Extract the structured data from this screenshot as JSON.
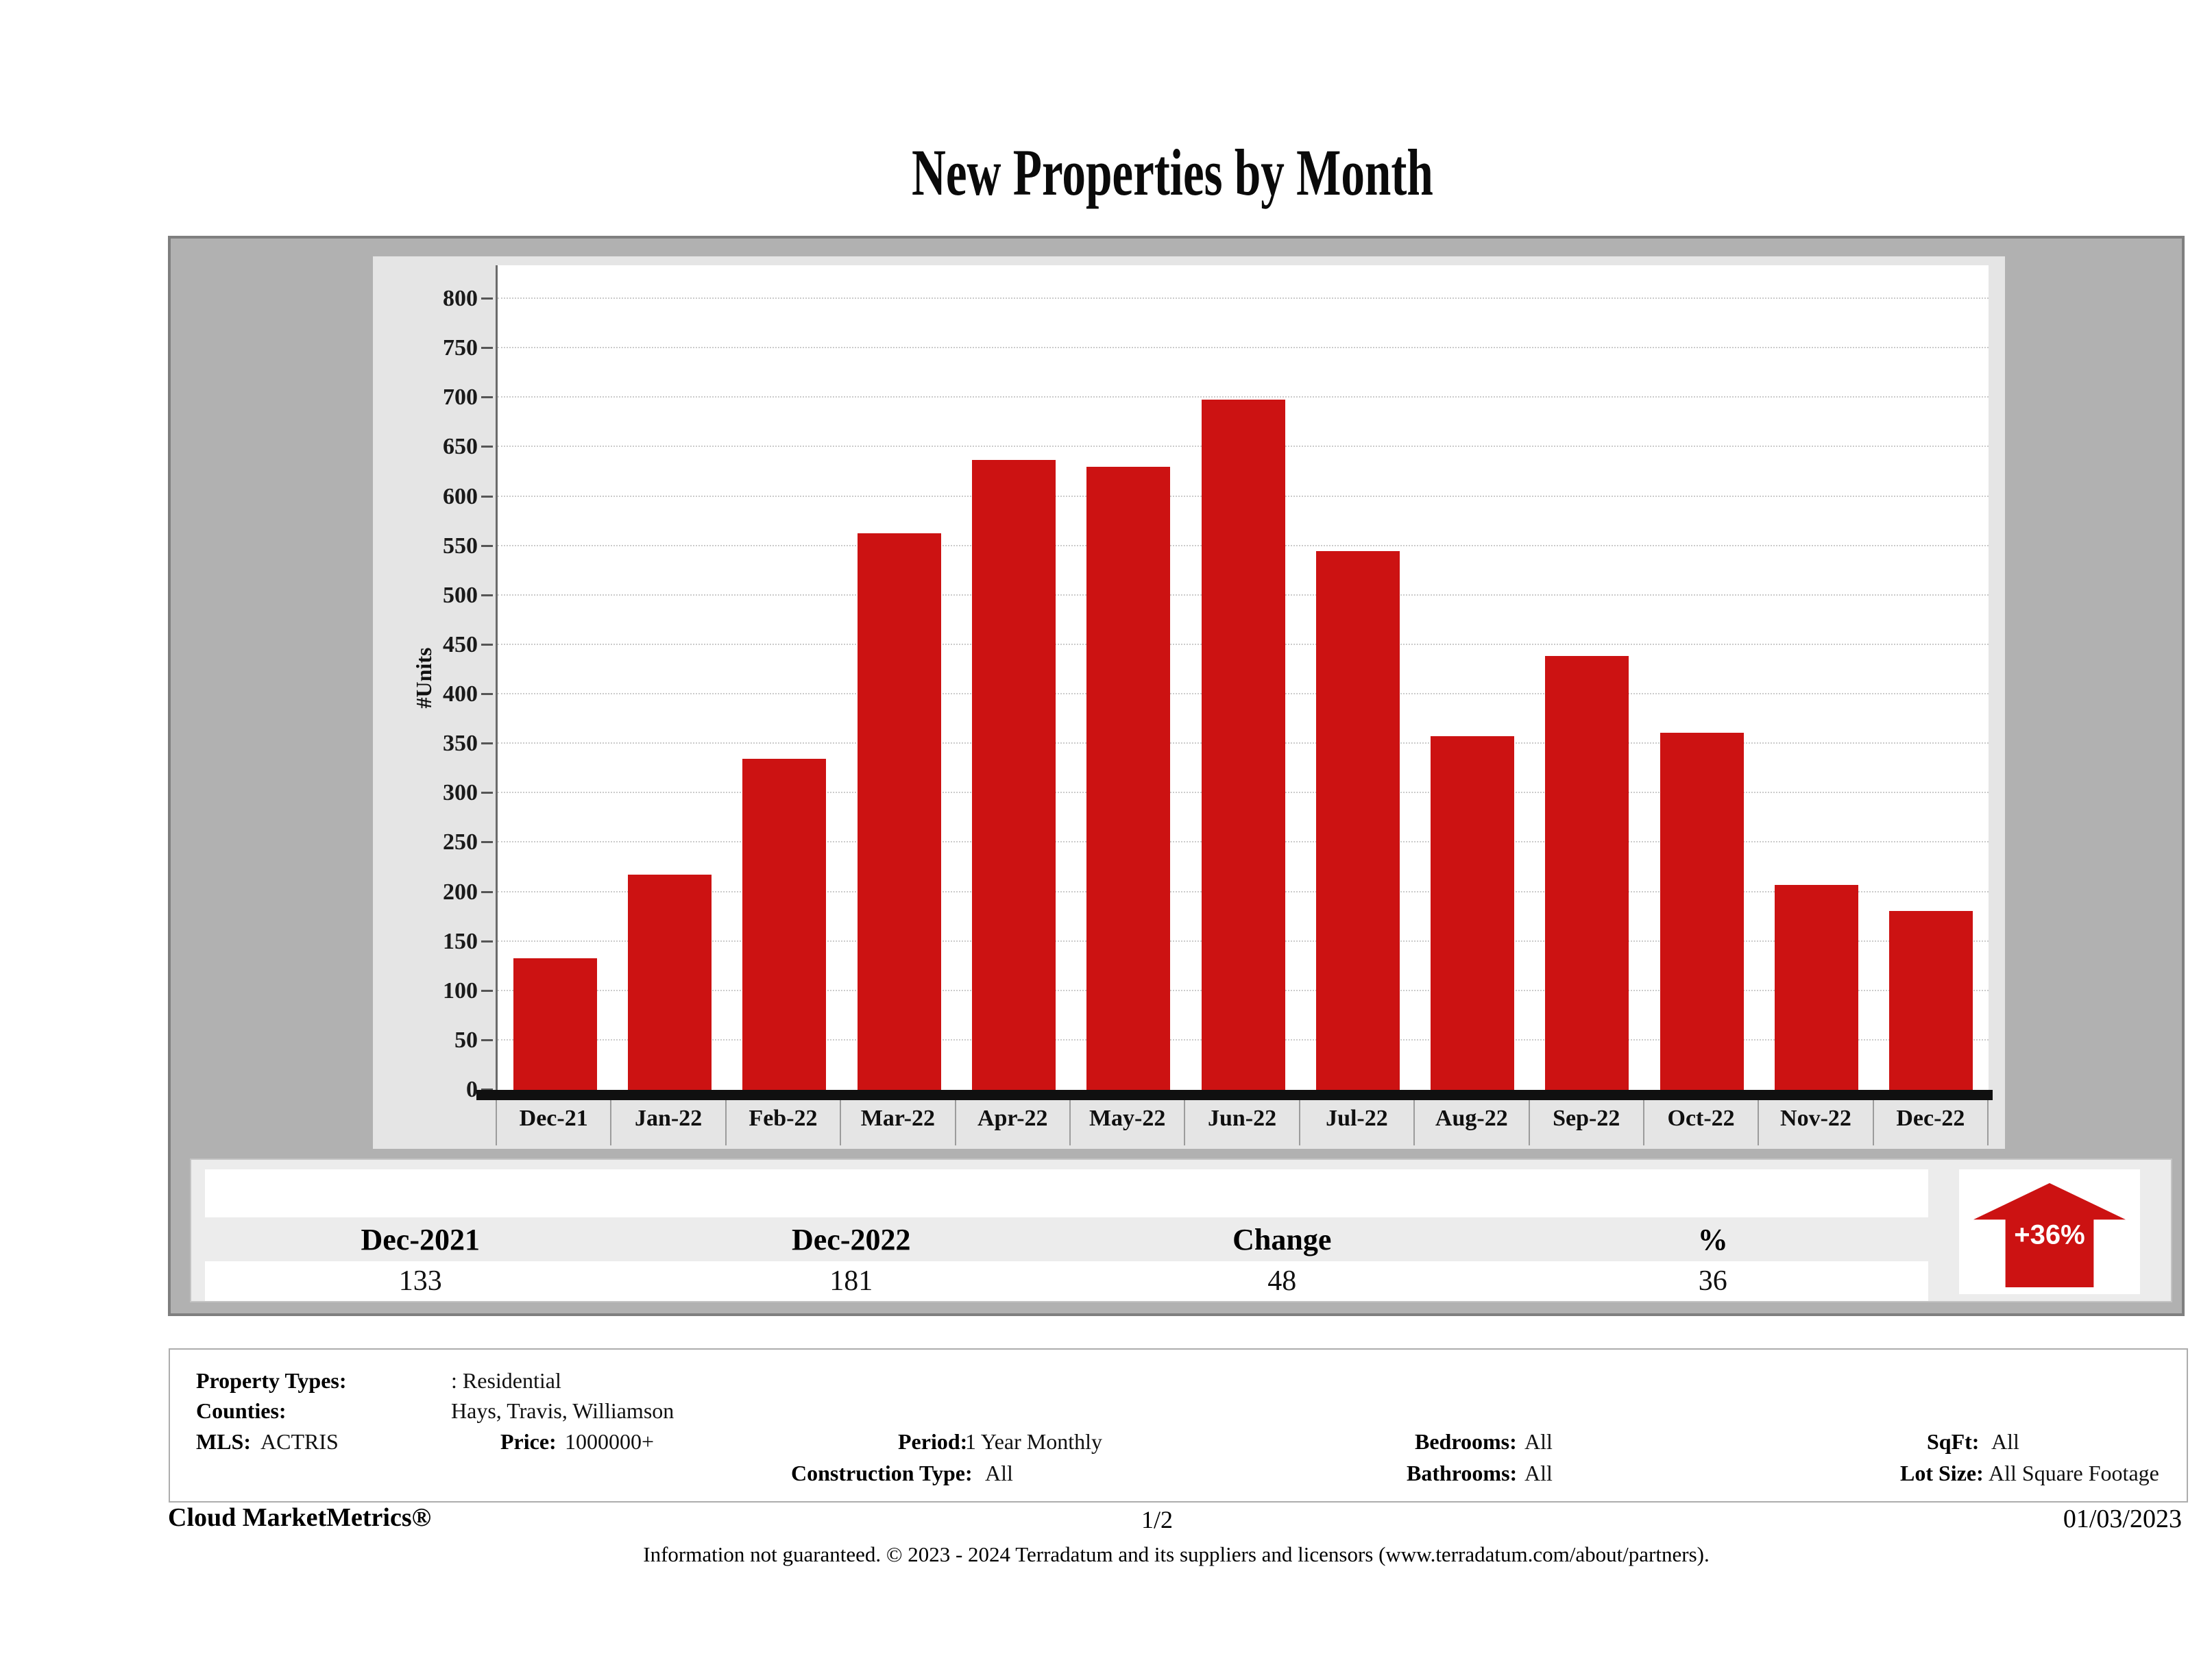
{
  "title": "New Properties by Month",
  "chart_data": {
    "type": "bar",
    "title": "New Properties by Month",
    "categories": [
      "Dec-21",
      "Jan-22",
      "Feb-22",
      "Mar-22",
      "Apr-22",
      "May-22",
      "Jun-22",
      "Jul-22",
      "Aug-22",
      "Sep-22",
      "Oct-22",
      "Nov-22",
      "Dec-22"
    ],
    "values": [
      133,
      218,
      335,
      563,
      637,
      630,
      698,
      545,
      358,
      439,
      361,
      207,
      181
    ],
    "xlabel": "",
    "ylabel": "#Units",
    "ylim": [
      0,
      800
    ],
    "ytick_step": 50,
    "grid": true,
    "legend": "none",
    "bar_color": "#cc1212"
  },
  "summary_table": {
    "headers": [
      "Dec-2021",
      "Dec-2022",
      "Change",
      "%"
    ],
    "values": [
      "133",
      "181",
      "48",
      "36"
    ]
  },
  "change_badge": {
    "label": "+36%",
    "direction": "up",
    "color": "#cc1212"
  },
  "filters": {
    "property_types_label": "Property Types:",
    "property_types_value": ": Residential",
    "counties_label": "Counties:",
    "counties_value": "Hays, Travis, Williamson",
    "mls_label": "MLS:",
    "mls_value": "ACTRIS",
    "price_label": "Price:",
    "price_value": "1000000+",
    "period_label": "Period:",
    "period_value": "1 Year Monthly",
    "construction_label": "Construction Type:",
    "construction_value": "All",
    "bedrooms_label": "Bedrooms:",
    "bedrooms_value": "All",
    "bathrooms_label": "Bathrooms:",
    "bathrooms_value": "All",
    "sqft_label": "SqFt:",
    "sqft_value": "All",
    "lotsize_label": "Lot Size:",
    "lotsize_value": "All Square Footage"
  },
  "footer": {
    "brand": "Cloud MarketMetrics®",
    "page": "1/2",
    "date": "01/03/2023",
    "disclaimer": "Information not guaranteed. © 2023 - 2024 Terradatum and its suppliers and licensors (www.terradatum.com/about/partners)."
  }
}
